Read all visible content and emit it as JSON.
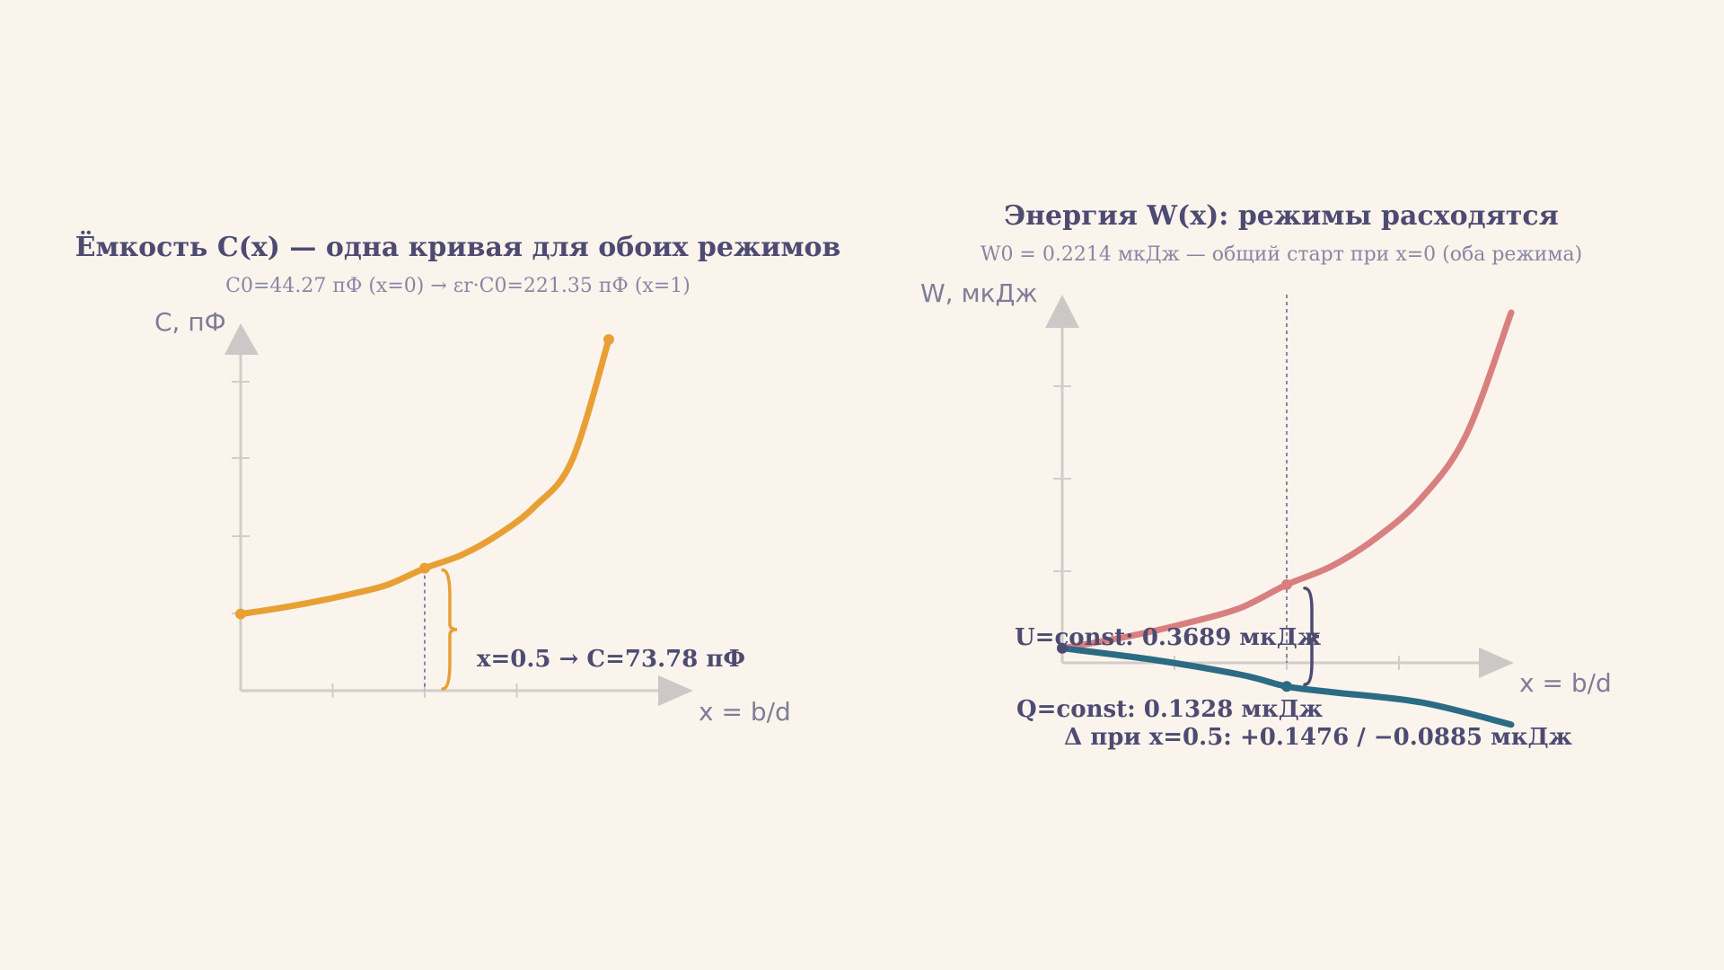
{
  "chart_data": [
    {
      "type": "line",
      "title": "Ёмкость C(x) — одна кривая для обоих режимов",
      "subtitle": "C0=44.27 пФ (x=0) → εr·C0=221.35 пФ (x=1)",
      "xlabel": "x = b/d",
      "ylabel": "C, пФ",
      "xlim": [
        0,
        1
      ],
      "ylim": [
        0,
        221.35
      ],
      "grid": false,
      "series": [
        {
          "name": "",
          "color": "#e8a035",
          "x": [
            0,
            0.1,
            0.2,
            0.3,
            0.4,
            0.5,
            0.6,
            0.7,
            0.8,
            0.9,
            1.0
          ],
          "values": [
            44.27,
            47.86,
            52.08,
            57.13,
            63.24,
            73.78,
            82.33,
            95.53,
            113.85,
            143.31,
            221.35
          ]
        }
      ],
      "annotation": {
        "x": 0.5,
        "y": 73.78,
        "text": "x=0.5 → C=73.78 пФ"
      }
    },
    {
      "type": "line",
      "title": "Энергия W(x): режимы расходятся",
      "subtitle": "W0 = 0.2214 мкДж — общий старт при x=0 (оба режима)",
      "xlabel": "x = b/d",
      "ylabel": "W, мкДж",
      "xlim": [
        0,
        1
      ],
      "ylim": [
        0,
        1.0
      ],
      "grid": false,
      "marker_x": 0.5,
      "series": [
        {
          "name": "U=const",
          "label_text": "U=const: 0.3689 мкДж",
          "color": "#d88080",
          "x": [
            0,
            0.1,
            0.2,
            0.3,
            0.4,
            0.5,
            0.6,
            0.7,
            0.8,
            0.9,
            1.0
          ],
          "values": [
            0.2214,
            0.2394,
            0.2604,
            0.2857,
            0.3162,
            0.3689,
            0.4117,
            0.4777,
            0.5693,
            0.7166,
            1.0
          ]
        },
        {
          "name": "Q=const",
          "label_text": "Q=const: 0.1328 мкДж",
          "color": "#2b6b84",
          "x": [
            0,
            0.2,
            0.4,
            0.5,
            0.6,
            0.8,
            1.0
          ],
          "values": [
            0.2214,
            0.1949,
            0.1594,
            0.1328,
            0.1195,
            0.0956,
            0.0442
          ]
        }
      ],
      "delta_text": "Δ при x=0.5: +0.1476 / −0.0885 мкДж",
      "start_color": "#4e4b72"
    }
  ]
}
